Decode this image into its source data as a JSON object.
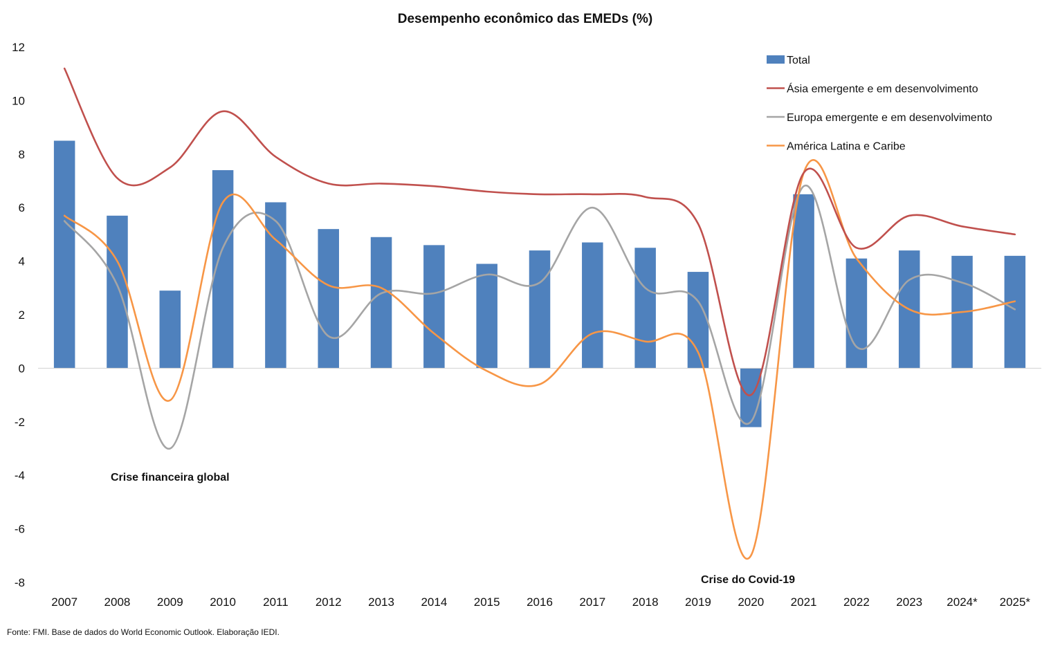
{
  "chart_data": {
    "type": "bar",
    "title": "Desempenho econômico das EMEDs (%)",
    "xlabel": "",
    "ylabel": "",
    "ylim": [
      -8,
      12
    ],
    "yticks": [
      12,
      10,
      8,
      6,
      4,
      2,
      0,
      -2,
      -4,
      -6,
      -8
    ],
    "categories": [
      "2007",
      "2008",
      "2009",
      "2010",
      "2011",
      "2012",
      "2013",
      "2014",
      "2015",
      "2016",
      "2017",
      "2018",
      "2019",
      "2020",
      "2021",
      "2022",
      "2023",
      "2024*",
      "2025*"
    ],
    "grid": false,
    "legend_position": "top-right",
    "series": [
      {
        "name": "Total",
        "kind": "bar",
        "color": "#4f81bd",
        "values": [
          8.5,
          5.7,
          2.9,
          7.4,
          6.2,
          5.2,
          4.9,
          4.6,
          3.9,
          4.4,
          4.7,
          4.5,
          3.6,
          -2.2,
          6.5,
          4.1,
          4.4,
          4.2,
          4.2
        ]
      },
      {
        "name": "Ásia emergente e em desenvolvimento",
        "kind": "line",
        "color": "#c0504d",
        "values": [
          11.2,
          7.1,
          7.5,
          9.6,
          7.9,
          6.9,
          6.9,
          6.8,
          6.6,
          6.5,
          6.5,
          6.4,
          5.4,
          -1.0,
          7.3,
          4.5,
          5.7,
          5.3,
          5.0
        ]
      },
      {
        "name": "Europa emergente e em desenvolvimento",
        "kind": "line",
        "color": "#a5a5a5",
        "values": [
          5.5,
          3.1,
          -3.0,
          4.5,
          5.5,
          1.2,
          2.8,
          2.8,
          3.5,
          3.2,
          6.0,
          3.0,
          2.5,
          -2.0,
          6.8,
          0.8,
          3.3,
          3.2,
          2.2
        ]
      },
      {
        "name": "América Latina e Caribe",
        "kind": "line",
        "color": "#f79646",
        "values": [
          5.7,
          4.0,
          -1.2,
          6.2,
          4.8,
          3.1,
          3.0,
          1.3,
          -0.1,
          -0.6,
          1.3,
          1.0,
          0.6,
          -7.0,
          7.3,
          4.1,
          2.2,
          2.1,
          2.5
        ]
      }
    ],
    "annotations": [
      "Crise financeira global",
      "Crise do Covid-19"
    ]
  },
  "source_note": "Fonte: FMI. Base de dados do World Economic Outlook. Elaboração IEDI."
}
